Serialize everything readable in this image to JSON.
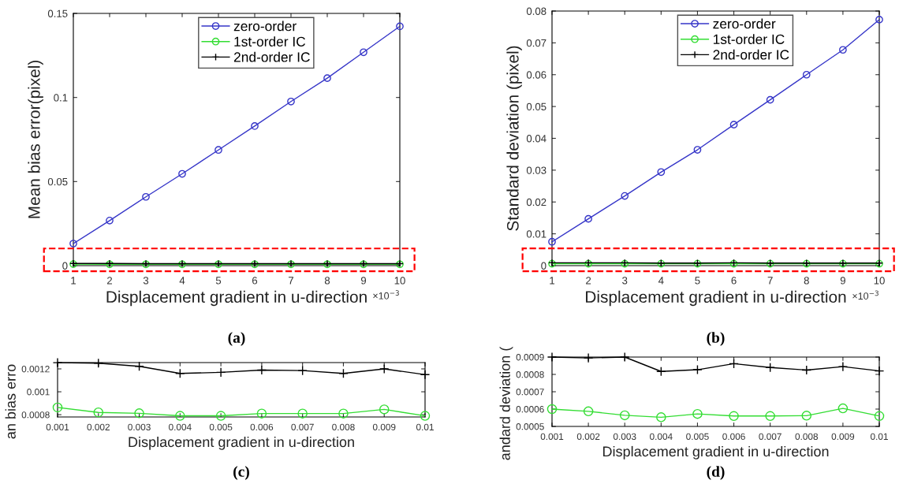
{
  "chart_data": [
    {
      "type": "line",
      "title": "(a)",
      "ylabel": "Mean bias error(pixel)",
      "xlabel": "Displacement gradient in u-direction",
      "annotations": [
        "×10$^{−3}$"
      ],
      "x": [
        1,
        2,
        3,
        4,
        5,
        6,
        7,
        8,
        9,
        10
      ],
      "xlim": [
        1,
        10
      ],
      "xticks": [
        1,
        2,
        3,
        4,
        5,
        6,
        7,
        8,
        9,
        10
      ],
      "ylim": [
        0,
        0.15
      ],
      "yticks": [
        0,
        0.05,
        0.1,
        0.15
      ],
      "legend": "top",
      "grid": false,
      "series": [
        {
          "name": "zero-order",
          "color": "#3535c8",
          "marker": "circle",
          "values": [
            0.0131,
            0.0268,
            0.0409,
            0.0546,
            0.0688,
            0.083,
            0.0976,
            0.1115,
            0.1269,
            0.1423
          ]
        },
        {
          "name": "1st-order IC",
          "color": "#33dd33",
          "marker": "circle",
          "values": [
            0.0009,
            0.0008,
            0.0008,
            0.0008,
            0.0008,
            0.0008,
            0.0008,
            0.0008,
            0.0008,
            0.0008
          ]
        },
        {
          "name": "2nd-order IC",
          "color": "#000000",
          "marker": "cross",
          "values": [
            0.0013,
            0.0013,
            0.0012,
            0.0012,
            0.0012,
            0.0012,
            0.0012,
            0.0012,
            0.0012,
            0.0012
          ]
        }
      ]
    },
    {
      "type": "line",
      "title": "(b)",
      "ylabel": "Standard deviation (pixel)",
      "xlabel": "Displacement gradient in u-direction",
      "annotations": [
        "×10$^{−3}$"
      ],
      "x": [
        1,
        2,
        3,
        4,
        5,
        6,
        7,
        8,
        9,
        10
      ],
      "xlim": [
        1,
        10
      ],
      "xticks": [
        1,
        2,
        3,
        4,
        5,
        6,
        7,
        8,
        9,
        10
      ],
      "ylim": [
        0,
        0.08
      ],
      "yticks": [
        0,
        0.01,
        0.02,
        0.03,
        0.04,
        0.05,
        0.06,
        0.07,
        0.08
      ],
      "legend": "top",
      "grid": false,
      "series": [
        {
          "name": "zero-order",
          "color": "#3535c8",
          "marker": "circle",
          "values": [
            0.0075,
            0.0147,
            0.0219,
            0.0294,
            0.0364,
            0.0443,
            0.0521,
            0.06,
            0.0678,
            0.0773
          ]
        },
        {
          "name": "1st-order IC",
          "color": "#33dd33",
          "marker": "circle",
          "values": [
            0.0006,
            0.0006,
            0.0006,
            0.0006,
            0.0006,
            0.0006,
            0.0006,
            0.0006,
            0.0006,
            0.0006
          ]
        },
        {
          "name": "2nd-order IC",
          "color": "#000000",
          "marker": "cross",
          "values": [
            0.0009,
            0.0009,
            0.0009,
            0.0008,
            0.0008,
            0.0009,
            0.0008,
            0.0008,
            0.0008,
            0.0008
          ]
        }
      ]
    },
    {
      "type": "line",
      "title": "(c)",
      "ylabel": "an bias erro",
      "xlabel": "Displacement gradient in u-direction",
      "x": [
        0.001,
        0.002,
        0.003,
        0.004,
        0.005,
        0.006,
        0.007,
        0.008,
        0.009,
        0.01
      ],
      "xlim": [
        0.001,
        0.01
      ],
      "xticks": [
        0.001,
        0.002,
        0.003,
        0.004,
        0.005,
        0.006,
        0.007,
        0.008,
        0.009,
        0.01
      ],
      "ylim": [
        0.00078,
        0.001255
      ],
      "yticks": [
        0.0008,
        0.001,
        0.0012
      ],
      "grid": false,
      "series": [
        {
          "color": "#000000",
          "marker": "cross",
          "values": [
            0.001254,
            0.00125,
            0.001222,
            0.00116,
            0.00117,
            0.00119,
            0.001185,
            0.00116,
            0.0012,
            0.00115
          ]
        },
        {
          "color": "#33dd33",
          "marker": "circle",
          "values": [
            0.000863,
            0.00082,
            0.000812,
            0.00079,
            0.00079,
            0.00081,
            0.00081,
            0.00081,
            0.000846,
            0.00079
          ]
        }
      ]
    },
    {
      "type": "line",
      "title": "(d)",
      "ylabel": "andard deviation (",
      "xlabel": "Displacement gradient in u-direction",
      "x": [
        0.001,
        0.002,
        0.003,
        0.004,
        0.005,
        0.006,
        0.007,
        0.008,
        0.009,
        0.01
      ],
      "xlim": [
        0.001,
        0.01
      ],
      "xticks": [
        0.001,
        0.002,
        0.003,
        0.004,
        0.005,
        0.006,
        0.007,
        0.008,
        0.009,
        0.01
      ],
      "ylim": [
        0.0005,
        0.0009
      ],
      "yticks": [
        0.0005,
        0.0006,
        0.0007,
        0.0008,
        0.0009
      ],
      "grid": false,
      "series": [
        {
          "color": "#000000",
          "marker": "cross",
          "values": [
            0.0009,
            0.000895,
            0.0009,
            0.000817,
            0.000827,
            0.000862,
            0.00084,
            0.000825,
            0.000845,
            0.00082
          ]
        },
        {
          "color": "#33dd33",
          "marker": "circle",
          "values": [
            0.0006,
            0.000587,
            0.000564,
            0.000553,
            0.000572,
            0.00056,
            0.00056,
            0.000562,
            0.000604,
            0.00056
          ]
        }
      ]
    }
  ]
}
